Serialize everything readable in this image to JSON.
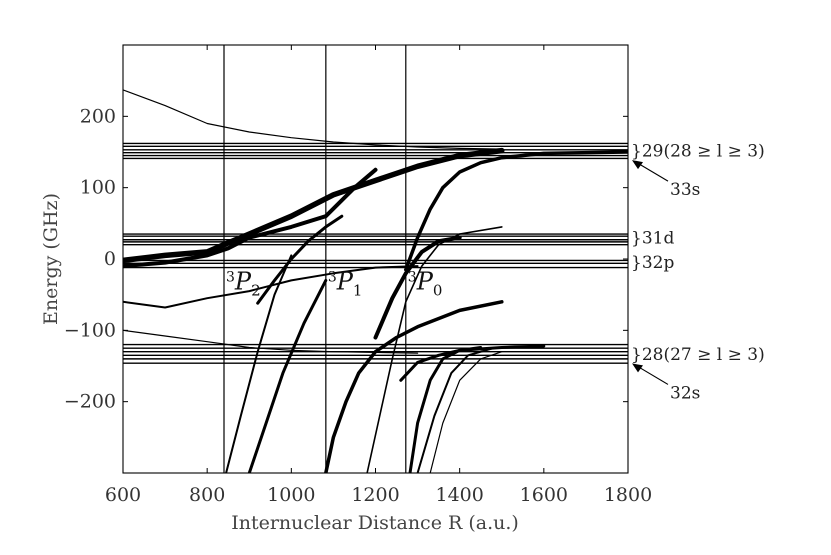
{
  "chart_data": {
    "type": "line",
    "xlabel": "Internuclear Distance R (a.u.)",
    "ylabel": "Energy (GHz)",
    "xlim": [
      600,
      1800
    ],
    "ylim": [
      -300,
      300
    ],
    "x_ticks": [
      "600",
      "800",
      "1000",
      "1200",
      "1400",
      "1600",
      "1800"
    ],
    "y_ticks": [
      "−200",
      "−100",
      "0",
      "100",
      "200"
    ],
    "x_tick_values": [
      600,
      800,
      1000,
      1200,
      1400,
      1600,
      1800
    ],
    "y_tick_values": [
      -200,
      -100,
      0,
      100,
      200
    ],
    "vertical_lines": [
      840,
      1082,
      1272
    ],
    "thresholds": [
      {
        "label_sup": "3",
        "label_main": "P",
        "label_sub": "2",
        "x": 840,
        "y": -15
      },
      {
        "label_sup": "3",
        "label_main": "P",
        "label_sub": "1",
        "x": 1082,
        "y": -15
      },
      {
        "label_sup": "3",
        "label_main": "P",
        "label_sub": "0",
        "x": 1272,
        "y": -15
      }
    ],
    "asymptote_labels": [
      {
        "text": "}29(28 ≥ l ≥ 3)",
        "y": 152
      },
      {
        "text": "}31d",
        "y": 30
      },
      {
        "text": "}32p",
        "y": -4
      },
      {
        "text": "}28(27 ≥ l ≥ 3)",
        "y": -133
      }
    ],
    "arrow_labels": [
      {
        "text": "33s",
        "y_target": 140
      },
      {
        "text": "32s",
        "y_target": -145
      }
    ],
    "flat_levels": [
      162,
      158,
      153,
      149,
      145,
      141,
      35,
      32,
      27,
      24,
      20,
      -2,
      -6,
      -12,
      -120,
      -125,
      -130,
      -135,
      -140,
      -146
    ],
    "series": [
      {
        "x": [
          600,
          700,
          800,
          900,
          1000,
          1100,
          1200,
          1300,
          1400,
          1500
        ],
        "y": [
          237,
          215,
          190,
          178,
          170,
          164,
          160,
          157,
          155,
          154
        ],
        "w": 1.2
      },
      {
        "x": [
          600,
          700,
          800,
          900,
          1000,
          1100,
          1200,
          1300
        ],
        "y": [
          -100,
          -108,
          -116,
          -124,
          -128,
          -130,
          -131,
          -132
        ],
        "w": 1.2
      },
      {
        "x": [
          600,
          700,
          800,
          900,
          1000,
          1100,
          1200,
          1300
        ],
        "y": [
          -60,
          -68,
          -55,
          -45,
          -30,
          -20,
          -12,
          -10
        ],
        "w": 2.0
      },
      {
        "x": [
          600,
          700,
          800,
          840,
          900,
          1000,
          1100,
          1200,
          1300,
          1400,
          1500
        ],
        "y": [
          -2,
          5,
          10,
          20,
          35,
          60,
          90,
          110,
          130,
          145,
          152
        ],
        "w": 5.5
      },
      {
        "x": [
          600,
          700,
          800,
          850,
          900,
          1000,
          1082,
          1150,
          1200
        ],
        "y": [
          -10,
          -5,
          5,
          15,
          30,
          45,
          60,
          100,
          125
        ],
        "w": 4.0
      },
      {
        "x": [
          900,
          940,
          980,
          1030,
          1082
        ],
        "y": [
          -300,
          -230,
          -160,
          -90,
          -30
        ],
        "w": 3.0
      },
      {
        "x": [
          845,
          880,
          920,
          960,
          1000
        ],
        "y": [
          -300,
          -220,
          -130,
          -50,
          5
        ],
        "w": 2.0
      },
      {
        "x": [
          920,
          960,
          1000,
          1040,
          1082,
          1120
        ],
        "y": [
          -62,
          -30,
          0,
          25,
          45,
          60
        ],
        "w": 3.0
      },
      {
        "x": [
          1082,
          1100,
          1130,
          1160,
          1200,
          1250,
          1300,
          1400,
          1500
        ],
        "y": [
          -300,
          -250,
          -200,
          -160,
          -130,
          -110,
          -95,
          -72,
          -60
        ],
        "w": 3.5
      },
      {
        "x": [
          1272,
          1300,
          1330,
          1360,
          1400,
          1450,
          1500,
          1600,
          1800
        ],
        "y": [
          -15,
          30,
          70,
          100,
          122,
          135,
          142,
          148,
          150
        ],
        "w": 3.5
      },
      {
        "x": [
          1180,
          1210,
          1240,
          1272,
          1310,
          1350,
          1400,
          1500
        ],
        "y": [
          -300,
          -220,
          -140,
          -60,
          -10,
          20,
          35,
          45
        ],
        "w": 1.6
      },
      {
        "x": [
          1200,
          1240,
          1272,
          1310,
          1350,
          1400
        ],
        "y": [
          -110,
          -55,
          -20,
          10,
          25,
          30
        ],
        "w": 4.0
      },
      {
        "x": [
          1282,
          1300,
          1330,
          1360,
          1400,
          1450
        ],
        "y": [
          -300,
          -230,
          -170,
          -140,
          -128,
          -124
        ],
        "w": 3.0
      },
      {
        "x": [
          1300,
          1340,
          1380,
          1420,
          1480
        ],
        "y": [
          -300,
          -220,
          -160,
          -135,
          -125
        ],
        "w": 2.0
      },
      {
        "x": [
          1260,
          1300,
          1350,
          1400,
          1500,
          1600
        ],
        "y": [
          -170,
          -145,
          -135,
          -128,
          -124,
          -122
        ],
        "w": 3.0
      },
      {
        "x": [
          1330,
          1360,
          1400,
          1450,
          1500
        ],
        "y": [
          -300,
          -230,
          -170,
          -140,
          -130
        ],
        "w": 1.2
      }
    ]
  }
}
